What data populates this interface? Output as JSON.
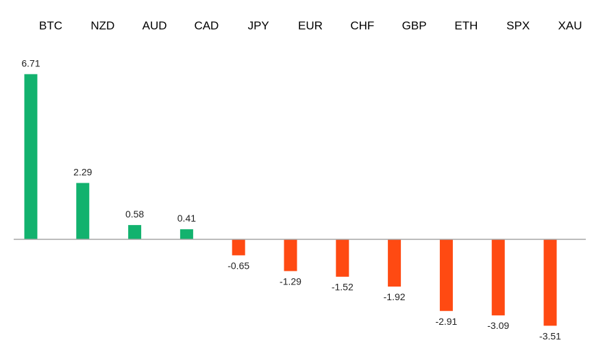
{
  "chart_data": {
    "type": "bar",
    "title": "",
    "xlabel": "",
    "ylabel": "",
    "categories": [
      "BTC",
      "NZD",
      "AUD",
      "CAD",
      "JPY",
      "EUR",
      "CHF",
      "GBP",
      "ETH",
      "SPX",
      "XAU"
    ],
    "values": [
      6.71,
      2.29,
      0.58,
      0.41,
      -0.65,
      -1.29,
      -1.52,
      -1.92,
      -2.91,
      -3.09,
      -3.51
    ],
    "value_labels": [
      "6.71",
      "2.29",
      "0.58",
      "0.41",
      "-0.65",
      "-1.29",
      "-1.52",
      "-1.92",
      "-2.91",
      "-3.09",
      "-3.51"
    ],
    "category_axis_position": "top",
    "grid": false,
    "legend": "none",
    "colors": {
      "positive": "#12b26e",
      "negative": "#ff4a12",
      "zero_line": "#a6a6a6"
    }
  }
}
